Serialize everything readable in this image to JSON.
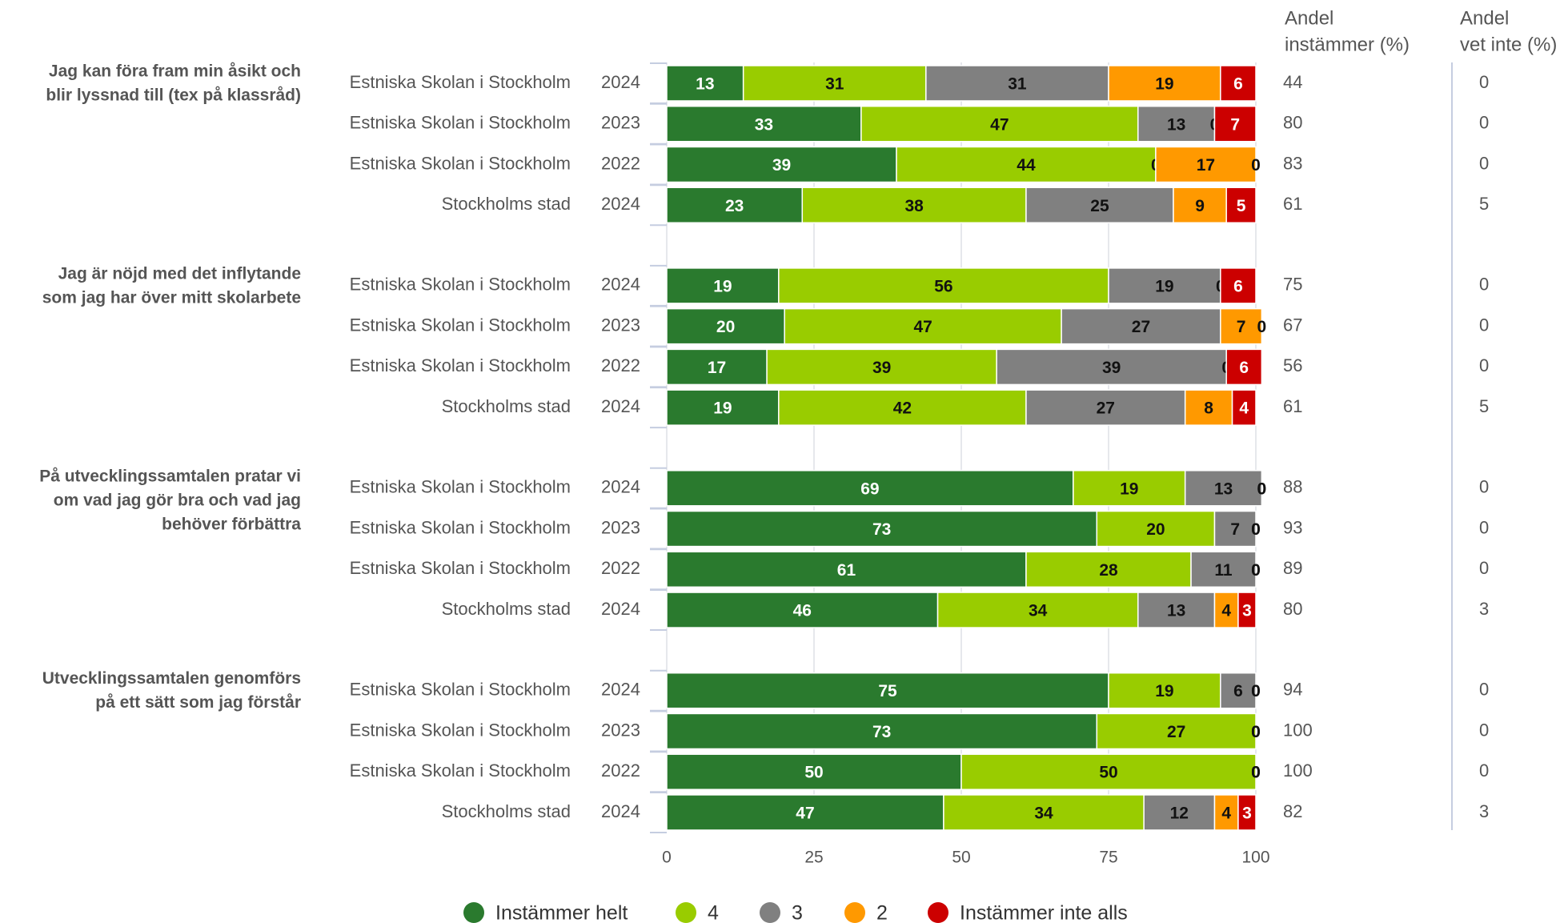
{
  "chart_data": {
    "type": "bar",
    "orientation": "horizontal",
    "stacked": true,
    "questions": [
      {
        "lines": [
          "Jag kan föra fram min åsikt och",
          "blir lyssnad till (tex på klassråd)"
        ]
      },
      {
        "lines": [
          "Jag är nöjd med det inflytande",
          "som jag har över mitt skolarbete"
        ]
      },
      {
        "lines": [
          "På utvecklingssamtalen pratar vi",
          "om vad jag gör bra och vad jag",
          "behöver förbättra"
        ]
      },
      {
        "lines": [
          "Utvecklingssamtalen genomförs",
          "på ett sätt som jag förstår"
        ]
      }
    ],
    "categories": [
      "Estniska Skolan i Stockholm",
      "Estniska Skolan i Stockholm",
      "Estniska Skolan i Stockholm",
      "Stockholms stad",
      "Estniska Skolan i Stockholm",
      "Estniska Skolan i Stockholm",
      "Estniska Skolan i Stockholm",
      "Stockholms stad",
      "Estniska Skolan i Stockholm",
      "Estniska Skolan i Stockholm",
      "Estniska Skolan i Stockholm",
      "Stockholms stad",
      "Estniska Skolan i Stockholm",
      "Estniska Skolan i Stockholm",
      "Estniska Skolan i Stockholm",
      "Stockholms stad"
    ],
    "years": [
      "2024",
      "2023",
      "2022",
      "2024",
      "2024",
      "2023",
      "2022",
      "2024",
      "2024",
      "2023",
      "2022",
      "2024",
      "2024",
      "2023",
      "2022",
      "2024"
    ],
    "series": [
      {
        "name": "Instämmer helt",
        "color": "#2a7a2e",
        "label_color": "#ffffff",
        "values": [
          13,
          33,
          39,
          23,
          19,
          20,
          17,
          19,
          69,
          73,
          61,
          46,
          75,
          73,
          50,
          47
        ]
      },
      {
        "name": "4",
        "color": "#99cc00",
        "label_color": "#111111",
        "values": [
          31,
          47,
          44,
          38,
          56,
          47,
          39,
          42,
          19,
          20,
          28,
          34,
          19,
          27,
          50,
          34
        ]
      },
      {
        "name": "3",
        "color": "#808080",
        "label_color": "#111111",
        "values": [
          31,
          13,
          0,
          25,
          19,
          27,
          39,
          27,
          13,
          7,
          11,
          13,
          6,
          0,
          0,
          12
        ]
      },
      {
        "name": "2",
        "color": "#ff9900",
        "label_color": "#111111",
        "values": [
          19,
          0,
          17,
          9,
          0,
          7,
          0,
          8,
          0,
          0,
          0,
          4,
          0,
          0,
          0,
          4
        ]
      },
      {
        "name": "Instämmer inte alls",
        "color": "#cc0000",
        "label_color": "#ffffff",
        "values": [
          6,
          7,
          0,
          5,
          6,
          0,
          6,
          4,
          0,
          0,
          0,
          3,
          0,
          0,
          0,
          3
        ]
      }
    ],
    "share_agree": {
      "header": [
        "Andel",
        "instämmer (%)"
      ],
      "values": [
        44,
        80,
        83,
        61,
        75,
        67,
        56,
        61,
        88,
        93,
        89,
        80,
        94,
        100,
        100,
        82
      ]
    },
    "share_unknown": {
      "header": [
        "Andel",
        "vet inte (%)"
      ],
      "values": [
        0,
        0,
        0,
        5,
        0,
        0,
        0,
        5,
        0,
        0,
        0,
        3,
        0,
        0,
        0,
        3
      ]
    },
    "xlim": [
      0,
      100
    ],
    "xticks": [
      0,
      25,
      50,
      75,
      100
    ],
    "grid": true,
    "legend": "bottom"
  }
}
